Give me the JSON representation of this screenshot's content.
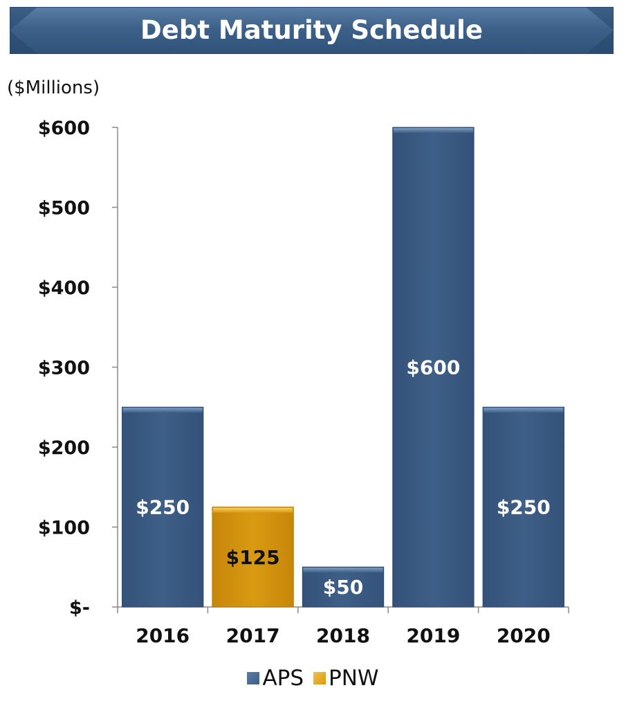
{
  "header": {
    "title": "Debt Maturity Schedule"
  },
  "unit_label": "($Millions)",
  "colors": {
    "APS": "#3e5f87",
    "PNW": "#d99a12"
  },
  "chart_data": {
    "type": "bar",
    "title": "Debt Maturity Schedule",
    "ylabel": "($Millions)",
    "xlabel": "",
    "ylim": [
      0,
      600
    ],
    "yticks": [
      0,
      100,
      200,
      300,
      400,
      500,
      600
    ],
    "ytick_labels": [
      "$-",
      "$100",
      "$200",
      "$300",
      "$400",
      "$500",
      "$600"
    ],
    "categories": [
      "2016",
      "2017",
      "2018",
      "2019",
      "2020"
    ],
    "bars": [
      {
        "category": "2016",
        "series": "APS",
        "value": 250,
        "label": "$250"
      },
      {
        "category": "2017",
        "series": "PNW",
        "value": 125,
        "label": "$125"
      },
      {
        "category": "2018",
        "series": "APS",
        "value": 50,
        "label": "$50"
      },
      {
        "category": "2019",
        "series": "APS",
        "value": 600,
        "label": "$600"
      },
      {
        "category": "2020",
        "series": "APS",
        "value": 250,
        "label": "$250"
      }
    ],
    "legend": {
      "position": "bottom",
      "entries": [
        "APS",
        "PNW"
      ]
    },
    "grid": false
  }
}
